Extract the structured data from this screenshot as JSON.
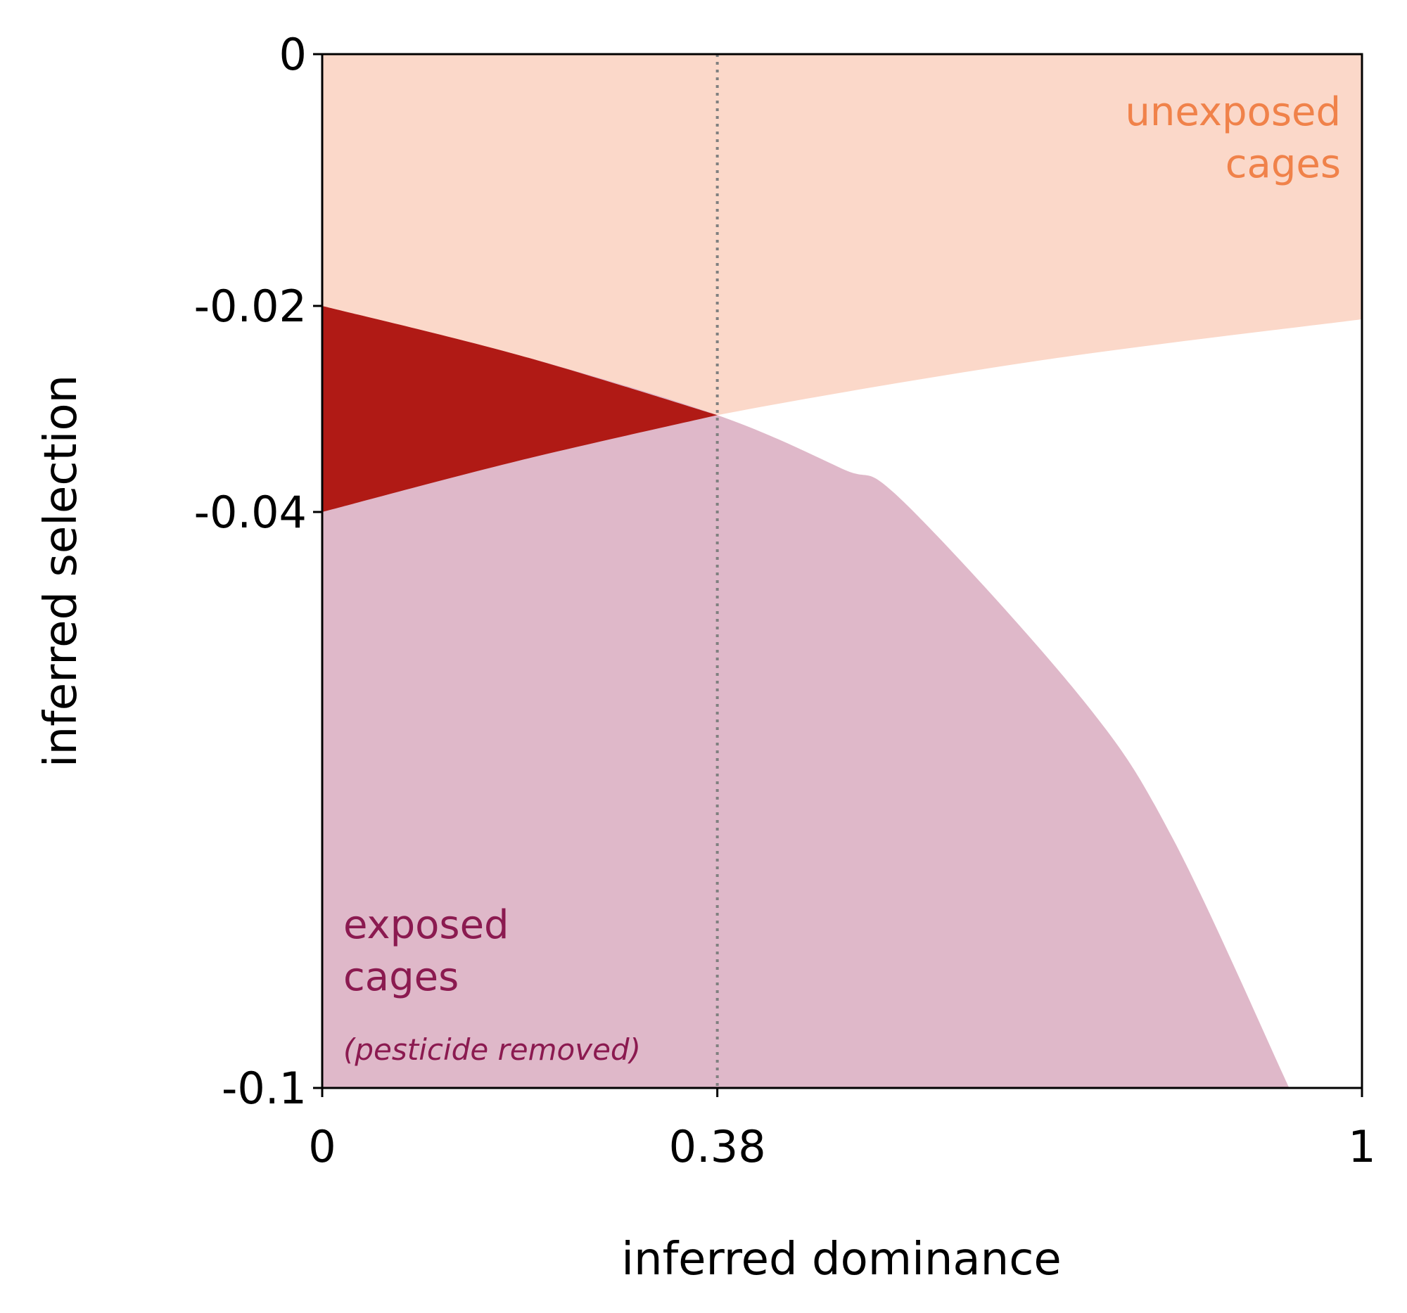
{
  "chart_data": {
    "type": "area",
    "title": "",
    "xlabel": "inferred dominance",
    "ylabel": "inferred selection",
    "xlim": [
      0,
      1
    ],
    "ylim": [
      -0.1,
      0
    ],
    "x_ticks": [
      {
        "value": 0,
        "label": "0"
      },
      {
        "value": 0.38,
        "label": "0.38"
      },
      {
        "value": 1,
        "label": "1"
      }
    ],
    "y_ticks": [
      {
        "value": 0,
        "label": "0"
      },
      {
        "value": -0.02,
        "label": "-0.02"
      },
      {
        "value": -0.04,
        "label": "-0.04"
      },
      {
        "value": -0.1,
        "label": "-0.1"
      }
    ],
    "grid": false,
    "reference_line": {
      "x": 0.38,
      "style": "dotted",
      "color": "#808080"
    },
    "series": [
      {
        "name": "unexposed cages",
        "color": "#fbd8c9",
        "label_color": "#f0824a",
        "region": "above lower boundary up to 0",
        "lower_boundary": [
          [
            0,
            -0.04
          ],
          [
            0.19,
            -0.035
          ],
          [
            0.38,
            -0.0306
          ],
          [
            0.69,
            -0.0253
          ],
          [
            1,
            -0.0213
          ]
        ]
      },
      {
        "name": "exposed cages",
        "color": "#dfb8c9",
        "label_color": "#8b1a50",
        "region": "below upper boundary down to -0.1",
        "upper_boundary": [
          [
            0,
            -0.02
          ],
          [
            0.19,
            -0.0248
          ],
          [
            0.38,
            -0.0306
          ],
          [
            0.5,
            -0.0358
          ],
          [
            0.558,
            -0.0389
          ],
          [
            0.731,
            -0.0595
          ],
          [
            0.818,
            -0.074
          ],
          [
            0.93,
            -0.1
          ]
        ]
      },
      {
        "name": "overlap",
        "color": "#b01a15"
      }
    ],
    "annotations": {
      "unexposed_line1": "unexposed",
      "unexposed_line2": "cages",
      "exposed_line1": "exposed",
      "exposed_line2": "cages",
      "exposed_note": "(pesticide removed)"
    }
  }
}
